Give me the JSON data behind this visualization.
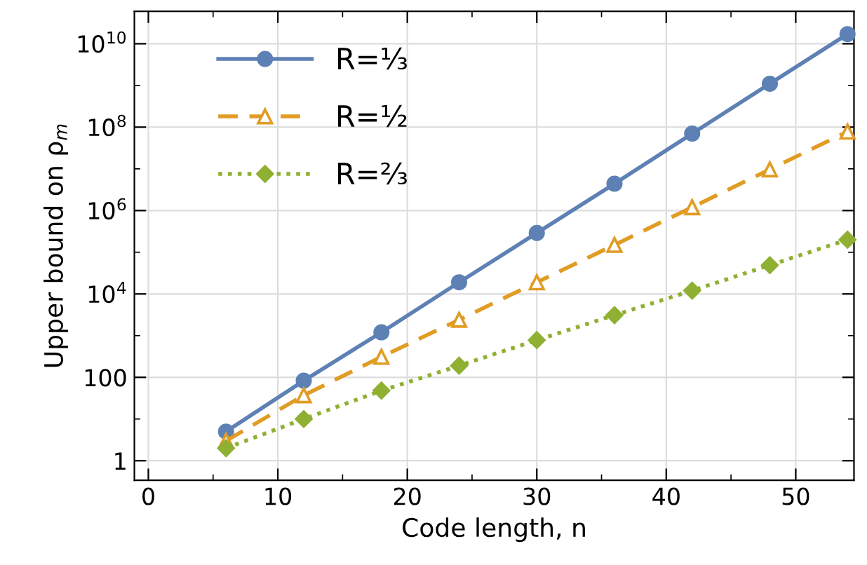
{
  "chart_data": {
    "type": "line",
    "xlabel": "Code length, n",
    "ylabel": "Upper bound on ρ$_{m}$",
    "x": [
      6,
      12,
      18,
      24,
      30,
      36,
      42,
      48,
      54
    ],
    "series": [
      {
        "name": "R=⅓",
        "color": "#5e81b5",
        "marker": "circle",
        "line_style": "solid",
        "values": [
          5,
          83,
          1200,
          19000,
          290000,
          4400000,
          70000000,
          1100000000,
          17000000000
        ]
      },
      {
        "name": "R=½",
        "color": "#e19c24",
        "marker": "triangle",
        "line_style": "dashed",
        "values": [
          3,
          37,
          310,
          2400,
          19000,
          150000,
          1200000,
          9700000,
          78000000
        ]
      },
      {
        "name": "R=⅔",
        "color": "#8fb032",
        "marker": "diamond",
        "line_style": "dotted",
        "values": [
          2,
          10,
          48,
          190,
          780,
          3100,
          12000,
          49000,
          200000
        ]
      }
    ],
    "log": "y",
    "xlim": [
      -1.08,
      54.5
    ],
    "ylim": [
      0.34,
      60000000000
    ],
    "xticks": [
      0,
      10,
      20,
      30,
      40,
      50,
      {
        "value": 5,
        "label": null
      },
      {
        "value": 15,
        "label": null
      },
      {
        "value": 25,
        "label": null
      },
      {
        "value": 35,
        "label": null
      },
      {
        "value": 45,
        "label": null
      }
    ],
    "yticks": [
      1,
      100,
      {
        "value": 10000,
        "label": "10$^{4}$"
      },
      {
        "value": 1000000,
        "label": "10$^{6}$"
      },
      {
        "value": 100000000,
        "label": "10$^{8}$"
      },
      {
        "value": 10000000000,
        "label": "10$^{10}$"
      },
      {
        "value": 10,
        "label": null
      },
      {
        "value": 1000,
        "label": null
      },
      {
        "value": 100000,
        "label": null
      },
      {
        "value": 10000000,
        "label": null
      },
      {
        "value": 1000000000,
        "label": null
      }
    ],
    "grid": true,
    "legend": "top left"
  }
}
